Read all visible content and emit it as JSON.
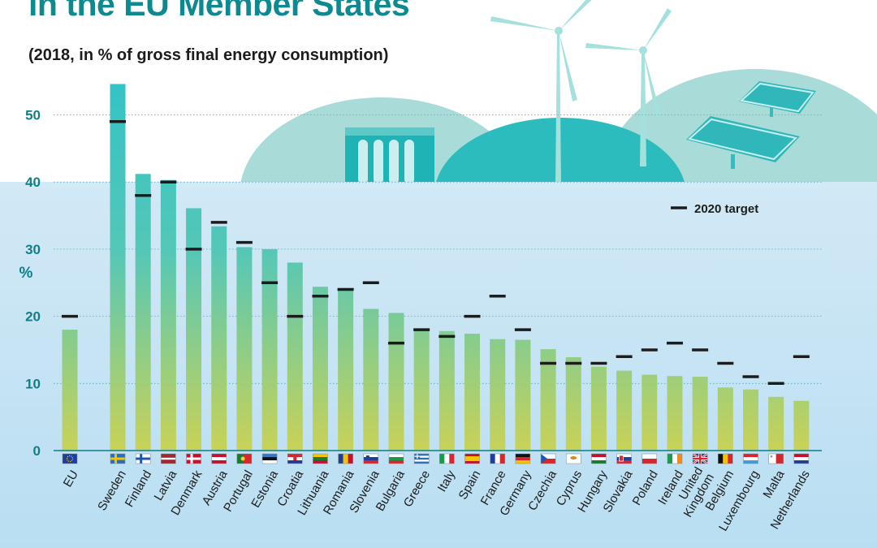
{
  "header": {
    "title": "in the EU Member States",
    "subtitle": "(2018, in % of gross final energy consumption)"
  },
  "colors": {
    "title": "#0d8a8f",
    "axis_teal": "#0e7f86",
    "plot_bg_top": "#d2e9f6",
    "plot_bg_bottom": "#b9def2",
    "bar_top": "#35c3c5",
    "bar_bottom": "#c9d257",
    "target_marker": "#1c1c1c",
    "scenery": "#9fd8d6",
    "scenery_dark": "#45bfc1"
  },
  "chart_data": {
    "type": "bar",
    "ylabel": "%",
    "ylim": [
      0,
      55
    ],
    "yticks": [
      0,
      10,
      20,
      30,
      40,
      50
    ],
    "grid": true,
    "legend": {
      "label": "2020 target",
      "placement": "top-right"
    },
    "categories": [
      "EU",
      "Sweden",
      "Finland",
      "Latvia",
      "Denmark",
      "Austria",
      "Portugal",
      "Estonia",
      "Croatia",
      "Lithuania",
      "Romania",
      "Slovenia",
      "Bulgaria",
      "Greece",
      "Italy",
      "Spain",
      "France",
      "Germany",
      "Czechia",
      "Cyprus",
      "Hungary",
      "Slovakia",
      "Poland",
      "Ireland",
      "United Kingdom",
      "Belgium",
      "Luxembourg",
      "Malta",
      "Netherlands"
    ],
    "category_labels": [
      [
        "EU"
      ],
      [
        "Sweden"
      ],
      [
        "Finland"
      ],
      [
        "Latvia"
      ],
      [
        "Denmark"
      ],
      [
        "Austria"
      ],
      [
        "Portugal"
      ],
      [
        "Estonia"
      ],
      [
        "Croatia"
      ],
      [
        "Lithuania"
      ],
      [
        "Romania"
      ],
      [
        "Slovenia"
      ],
      [
        "Bulgaria"
      ],
      [
        "Greece"
      ],
      [
        "Italy"
      ],
      [
        "Spain"
      ],
      [
        "France"
      ],
      [
        "Germany"
      ],
      [
        "Czechia"
      ],
      [
        "Cyprus"
      ],
      [
        "Hungary"
      ],
      [
        "Slovakia"
      ],
      [
        "Poland"
      ],
      [
        "Ireland"
      ],
      [
        "United",
        "Kingdom"
      ],
      [
        "Belgium"
      ],
      [
        "Luxembourg"
      ],
      [
        "Malta"
      ],
      [
        "Netherlands"
      ]
    ],
    "series": [
      {
        "name": "2018",
        "values": [
          18.0,
          54.6,
          41.2,
          40.3,
          36.1,
          33.4,
          30.3,
          30.0,
          28.0,
          24.4,
          23.9,
          21.1,
          20.5,
          18.0,
          17.8,
          17.4,
          16.6,
          16.5,
          15.1,
          13.9,
          12.5,
          11.9,
          11.3,
          11.1,
          11.0,
          9.4,
          9.1,
          8.0,
          7.4
        ]
      },
      {
        "name": "2020 target",
        "values": [
          20,
          49,
          38,
          40,
          30,
          34,
          31,
          25,
          20,
          23,
          24,
          25,
          16,
          18,
          17,
          20,
          23,
          18,
          13,
          13,
          13,
          14,
          15,
          16,
          15,
          13,
          11,
          10,
          14
        ]
      }
    ],
    "flags": [
      "eu",
      "sweden",
      "finland",
      "latvia",
      "denmark",
      "austria",
      "portugal",
      "estonia",
      "croatia",
      "lithuania",
      "romania",
      "slovenia",
      "bulgaria",
      "greece",
      "italy",
      "spain",
      "france",
      "germany",
      "czechia",
      "cyprus",
      "hungary",
      "slovakia",
      "poland",
      "ireland",
      "united-kingdom",
      "belgium",
      "luxembourg",
      "malta",
      "netherlands"
    ]
  }
}
